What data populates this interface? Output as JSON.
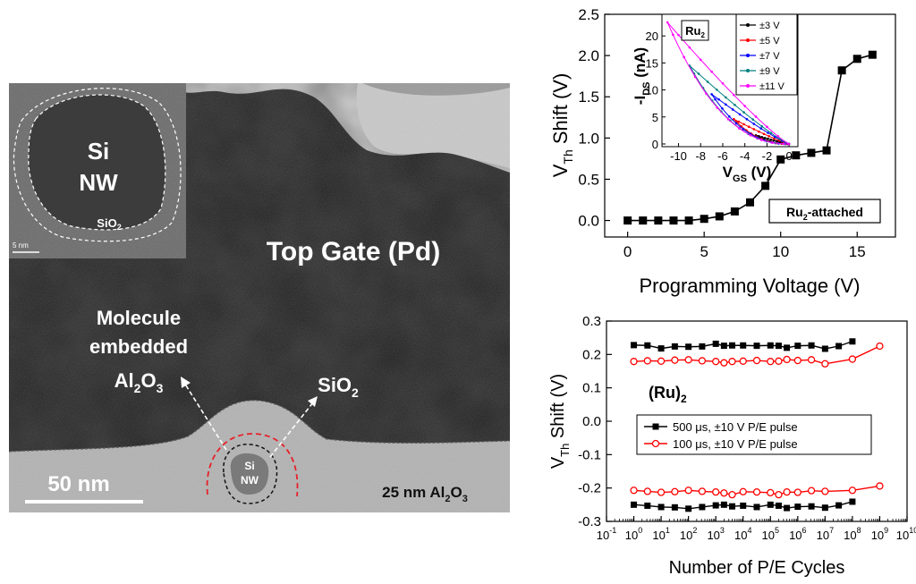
{
  "tem": {
    "top_gate_label": "Top Gate (Pd)",
    "molecule_label_lines": [
      "Molecule",
      "embedded"
    ],
    "al2o3_main": "Al",
    "al2o3_sub2": "2",
    "al2o3_tail": "O",
    "al2o3_sub3": "3",
    "sio2_main": "SiO",
    "sio2_sub": "2",
    "si_nw_lines": [
      "Si",
      "NW"
    ],
    "scale_bar_label": "50 nm",
    "substrate_label": "25 nm Al",
    "substrate_sub2": "2",
    "substrate_tail": "O",
    "substrate_sub3": "3",
    "inset": {
      "si_label": "Si",
      "nw_label": "NW",
      "sio2_main": "SiO",
      "sio2_sub": "2",
      "scale_label": "5 nm"
    }
  },
  "chart_data": [
    {
      "type": "line",
      "title": "",
      "xlabel": "Programming Voltage (V)",
      "ylabel_main": "V",
      "ylabel_sub": "Th",
      "ylabel_tail": " Shift (V)",
      "xlim": [
        -1.5,
        17.5
      ],
      "ylim": [
        -0.2,
        2.5
      ],
      "xticks": [
        0,
        5,
        10,
        15
      ],
      "yticks": [
        0.0,
        0.5,
        1.0,
        1.5,
        2.0,
        2.5
      ],
      "annotation_main": "Ru",
      "annotation_sub": "2",
      "annotation_tail": "-attached",
      "series": [
        {
          "name": "Ru2-attached",
          "x": [
            0,
            1,
            2,
            3,
            4,
            5,
            6,
            7,
            8,
            9,
            10,
            11,
            12,
            13,
            14,
            15,
            16
          ],
          "y": [
            0.0,
            0.0,
            0.0,
            0.0,
            0.0,
            0.02,
            0.05,
            0.11,
            0.22,
            0.42,
            0.74,
            0.79,
            0.82,
            0.85,
            1.82,
            1.96,
            2.01
          ]
        }
      ],
      "inset": {
        "type": "line",
        "label_main": "Ru",
        "label_sub": "2",
        "xlabel_main": "V",
        "xlabel_sub": "GS",
        "xlabel_tail": " (V)",
        "ylabel_main": "-I",
        "ylabel_sub": "DS",
        "ylabel_tail": " (nA)",
        "xlim": [
          -11.5,
          0.8
        ],
        "ylim": [
          -0.5,
          24
        ],
        "xticks": [
          -10,
          -8,
          -6,
          -4,
          -2,
          0
        ],
        "yticks": [
          0,
          5,
          10,
          15,
          20
        ],
        "series": [
          {
            "name": "±3 V",
            "color": "#000000",
            "vmax": 3,
            "imax": 1.6
          },
          {
            "name": "±5 V",
            "color": "#ff0000",
            "vmax": 5,
            "imax": 4.6
          },
          {
            "name": "±7 V",
            "color": "#0000ff",
            "vmax": 7,
            "imax": 9.2
          },
          {
            "name": "±9 V",
            "color": "#008080",
            "vmax": 9,
            "imax": 14.5
          },
          {
            "name": "±11 V",
            "color": "#ff00ff",
            "vmax": 11,
            "imax": 22.5
          }
        ]
      }
    },
    {
      "type": "line",
      "title": "(Ru)",
      "title_sub": "2",
      "xlabel": "Number of P/E Cycles",
      "ylabel_main": "V",
      "ylabel_sub": "Th",
      "ylabel_tail": " Shift (V)",
      "xscale": "log",
      "xlim_exp": [
        -1,
        10
      ],
      "ylim": [
        -0.3,
        0.3
      ],
      "xticks_exp": [
        -1,
        0,
        1,
        2,
        3,
        4,
        5,
        6,
        7,
        8,
        9,
        10
      ],
      "yticks": [
        -0.3,
        -0.2,
        -0.1,
        0.0,
        0.1,
        0.2,
        0.3
      ],
      "series": [
        {
          "name": "500 μs, ±10 V P/E pulse",
          "color": "#000000",
          "marker": "square",
          "x_exp": [
            0,
            0.5,
            1,
            1.5,
            2,
            2.5,
            3,
            3.3,
            3.6,
            4,
            4.5,
            5,
            5.3,
            5.6,
            6,
            6.5,
            7,
            7.5,
            8
          ],
          "program": [
            0.228,
            0.227,
            0.218,
            0.224,
            0.223,
            0.224,
            0.232,
            0.226,
            0.227,
            0.227,
            0.226,
            0.227,
            0.226,
            0.22,
            0.226,
            0.227,
            0.217,
            0.225,
            0.239
          ],
          "erase": [
            -0.25,
            -0.253,
            -0.257,
            -0.258,
            -0.262,
            -0.257,
            -0.252,
            -0.25,
            -0.255,
            -0.253,
            -0.257,
            -0.25,
            -0.253,
            -0.26,
            -0.256,
            -0.255,
            -0.259,
            -0.252,
            -0.241
          ]
        },
        {
          "name": "100 μs, ±10 V P/E pulse",
          "color": "#ff0000",
          "marker": "circle",
          "x_exp": [
            0,
            0.5,
            1,
            1.5,
            2,
            2.5,
            3,
            3.3,
            3.6,
            4,
            4.5,
            5,
            5.3,
            5.6,
            6,
            6.5,
            7,
            8,
            9
          ],
          "program": [
            0.179,
            0.181,
            0.18,
            0.183,
            0.184,
            0.181,
            0.179,
            0.175,
            0.179,
            0.18,
            0.182,
            0.179,
            0.18,
            0.185,
            0.182,
            0.184,
            0.172,
            0.186,
            0.225
          ],
          "erase": [
            -0.207,
            -0.21,
            -0.213,
            -0.211,
            -0.207,
            -0.21,
            -0.212,
            -0.215,
            -0.22,
            -0.211,
            -0.212,
            -0.214,
            -0.22,
            -0.212,
            -0.213,
            -0.208,
            -0.21,
            -0.207,
            -0.194
          ]
        }
      ]
    }
  ],
  "colors": {
    "tem_dark": "#2f2f2f",
    "tem_light": "#b8b8b8",
    "red_dashed": "#e8202a"
  }
}
